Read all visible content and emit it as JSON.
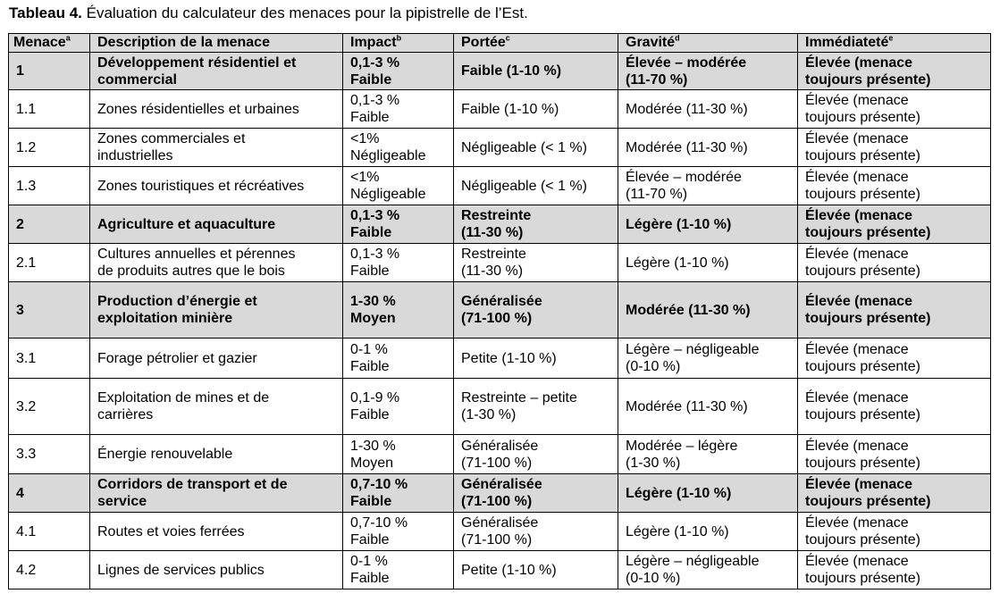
{
  "caption": {
    "label": "Tableau 4.",
    "text": " Évaluation du calculateur des menaces pour la pipistrelle de l’Est."
  },
  "headers": [
    {
      "text": "Menace",
      "sup": "a"
    },
    {
      "text": "Description de la menace",
      "sup": ""
    },
    {
      "text": "Impact",
      "sup": "b"
    },
    {
      "text": "Portée",
      "sup": "c"
    },
    {
      "text": "Gravité",
      "sup": "d"
    },
    {
      "text": "Immédiateté",
      "sup": "e"
    }
  ],
  "rows": [
    {
      "group": true,
      "h": 42,
      "cells": [
        [
          "1"
        ],
        [
          "Développement résidentiel et",
          "commercial"
        ],
        [
          "0,1-3 %",
          "Faible"
        ],
        [
          "Faible (1-10 %)"
        ],
        [
          "Élevée – modérée",
          "(11-70 %)"
        ],
        [
          "Élevée (menace",
          "toujours présente)"
        ]
      ]
    },
    {
      "group": false,
      "h": 43,
      "cells": [
        [
          "1.1"
        ],
        [
          "Zones résidentielles et urbaines"
        ],
        [
          "0,1-3 %",
          "Faible"
        ],
        [
          "Faible (1-10 %)"
        ],
        [
          "Modérée (11-30 %)"
        ],
        [
          "Élevée (menace",
          "toujours présente)"
        ]
      ]
    },
    {
      "group": false,
      "h": 43,
      "cells": [
        [
          "1.2"
        ],
        [
          "Zones commerciales et",
          "industrielles"
        ],
        [
          "<1%",
          "Négligeable"
        ],
        [
          "Négligeable (< 1 %)"
        ],
        [
          "Modérée (11-30 %)"
        ],
        [
          "Élevée (menace",
          "toujours présente)"
        ]
      ]
    },
    {
      "group": false,
      "h": 43,
      "cells": [
        [
          "1.3"
        ],
        [
          "Zones touristiques et récréatives"
        ],
        [
          "<1%",
          "Négligeable"
        ],
        [
          "Négligeable (< 1 %)"
        ],
        [
          "Élevée – modérée",
          "(11-70 %)"
        ],
        [
          "Élevée (menace",
          "toujours présente)"
        ]
      ]
    },
    {
      "group": true,
      "h": 43,
      "cells": [
        [
          "2"
        ],
        [
          "Agriculture et aquaculture"
        ],
        [
          "0,1-3 %",
          "Faible"
        ],
        [
          "Restreinte",
          "(11-30 %)"
        ],
        [
          "Légère (1-10 %)"
        ],
        [
          "Élevée (menace",
          "toujours présente)"
        ]
      ]
    },
    {
      "group": false,
      "h": 43,
      "cells": [
        [
          "2.1"
        ],
        [
          "Cultures annuelles et pérennes",
          "de produits autres que le bois"
        ],
        [
          "0,1-3 %",
          "Faible"
        ],
        [
          "Restreinte",
          "(11-30 %)"
        ],
        [
          "Légère (1-10 %)"
        ],
        [
          "Élevée (menace",
          "toujours présente)"
        ]
      ]
    },
    {
      "group": true,
      "h": 63,
      "cells": [
        [
          "3"
        ],
        [
          "Production d’énergie et",
          "exploitation minière"
        ],
        [
          "1-30 %",
          "Moyen"
        ],
        [
          "Généralisée",
          "(71-100 %)"
        ],
        [
          "Modérée (11-30 %)"
        ],
        [
          "Élevée (menace",
          "toujours présente)"
        ]
      ]
    },
    {
      "group": false,
      "h": 45,
      "cells": [
        [
          "3.1"
        ],
        [
          "Forage pétrolier et gazier"
        ],
        [
          "0-1 %",
          "Faible"
        ],
        [
          "Petite (1-10 %)"
        ],
        [
          "Légère – négligeable",
          "(0-10 %)"
        ],
        [
          "Élevée (menace",
          "toujours présente)"
        ]
      ]
    },
    {
      "group": false,
      "h": 63,
      "cells": [
        [
          "3.2"
        ],
        [
          "Exploitation de mines et de",
          "carrières"
        ],
        [
          "0,1-9 %",
          "Faible"
        ],
        [
          "Restreinte – petite",
          "(1-30 %)"
        ],
        [
          "Modérée (11-30 %)"
        ],
        [
          "Élevée (menace",
          "toujours présente)"
        ]
      ]
    },
    {
      "group": false,
      "h": 44,
      "cells": [
        [
          "3.3"
        ],
        [
          "Énergie renouvelable"
        ],
        [
          "1-30 %",
          "Moyen"
        ],
        [
          "Généralisée",
          "(71-100 %)"
        ],
        [
          "Modérée – légère",
          "(1-30 %)"
        ],
        [
          "Élevée (menace",
          "toujours présente)"
        ]
      ]
    },
    {
      "group": true,
      "h": 43,
      "cells": [
        [
          "4"
        ],
        [
          "Corridors de transport et de",
          "service"
        ],
        [
          "0,7-10 %",
          "Faible"
        ],
        [
          "Généralisée",
          "(71-100 %)"
        ],
        [
          "Légère (1-10 %)"
        ],
        [
          "Élevée (menace",
          "toujours présente)"
        ]
      ]
    },
    {
      "group": false,
      "h": 43,
      "cells": [
        [
          "4.1"
        ],
        [
          "Routes et voies ferrées"
        ],
        [
          "0,7-10 %",
          "Faible"
        ],
        [
          "Généralisée",
          "(71-100 %)"
        ],
        [
          "Légère (1-10 %)"
        ],
        [
          "Élevée (menace",
          "toujours présente)"
        ]
      ]
    },
    {
      "group": false,
      "h": 43,
      "cells": [
        [
          "4.2"
        ],
        [
          "Lignes de services publics"
        ],
        [
          "0-1 %",
          "Faible"
        ],
        [
          "Petite (1-10 %)"
        ],
        [
          "Légère – négligeable",
          "(0-10 %)"
        ],
        [
          "Élevée (menace",
          "toujours présente)"
        ]
      ]
    }
  ]
}
